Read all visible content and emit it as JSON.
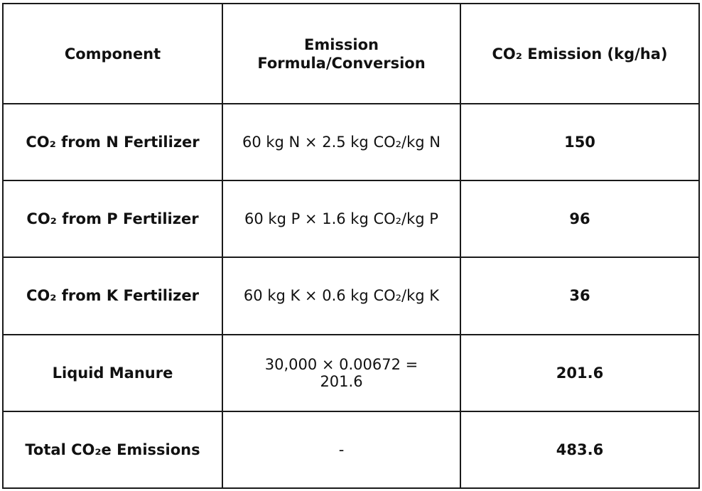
{
  "table": {
    "headers": [
      "Component",
      "Emission Formula/Conversion",
      "CO₂ Emission (kg/ha)"
    ],
    "rows": [
      {
        "component": "CO₂ from N Fertilizer",
        "formula": "60 kg N × 2.5 kg CO₂/kg N",
        "emission": "150"
      },
      {
        "component": "CO₂ from P Fertilizer",
        "formula": "60 kg P × 1.6 kg CO₂/kg P",
        "emission": "96"
      },
      {
        "component": "CO₂ from K Fertilizer",
        "formula": "60 kg K × 0.6 kg CO₂/kg K",
        "emission": "36"
      },
      {
        "component": "Liquid Manure",
        "formula": "30,000 × 0.00672 = 201.6",
        "emission": "201.6"
      },
      {
        "component": "Total CO₂e Emissions",
        "formula": "-",
        "emission": "483.6"
      }
    ]
  }
}
